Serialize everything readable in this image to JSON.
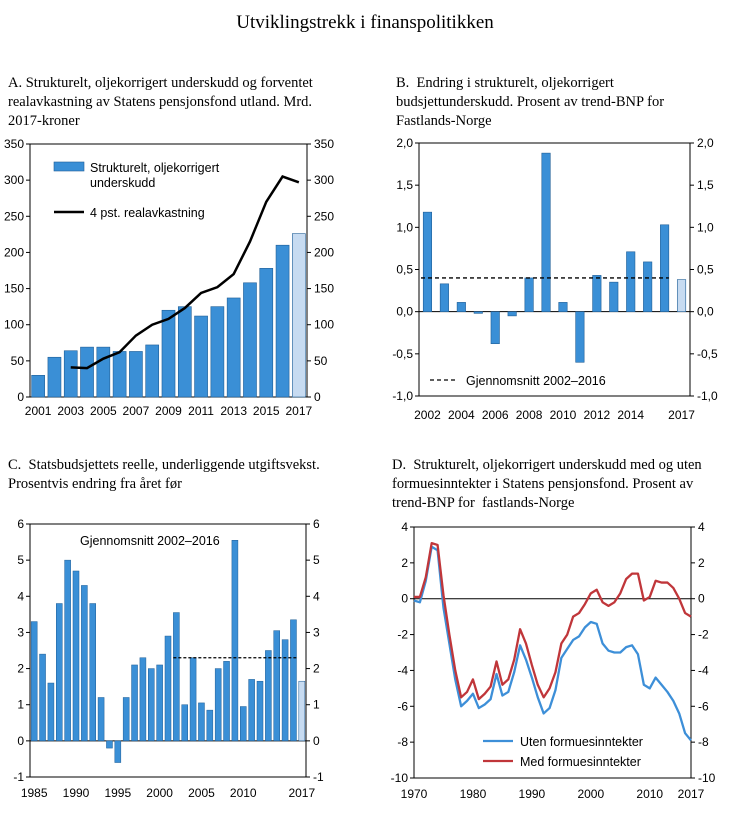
{
  "page_title": "Utviklingstrekk i finanspolitikken",
  "colors": {
    "bar": "#3a8fd6",
    "bar_light": "#c7dbf1",
    "line": "#000000",
    "blue_line": "#3d8fd8",
    "red_line": "#c0363a"
  },
  "chart_data": [
    {
      "panel": "A",
      "type": "bar",
      "title": "A. Strukturelt, oljekorrigert underskudd og forventet realavkastning av Statens pensjonsfond utland. Mrd. 2017-kroner",
      "x": [
        2001,
        2002,
        2003,
        2004,
        2005,
        2006,
        2007,
        2008,
        2009,
        2010,
        2011,
        2012,
        2013,
        2014,
        2015,
        2016,
        2017
      ],
      "ylim": [
        0,
        350
      ],
      "yticks": [
        "0",
        "50",
        "100",
        "150",
        "200",
        "250",
        "300",
        "350"
      ],
      "xticks": [
        "2001",
        "2003",
        "2005",
        "2007",
        "2009",
        "2011",
        "2013",
        "2015",
        "2017"
      ],
      "series": [
        {
          "name": "Strukturelt, oljekorrigert underskudd",
          "type": "bar",
          "values": [
            30,
            55,
            64,
            69,
            69,
            63,
            63,
            72,
            120,
            125,
            112,
            125,
            137,
            158,
            178,
            210,
            226
          ],
          "highlight_last": true
        },
        {
          "name": "4 pst. realavkastning",
          "type": "line",
          "x": [
            2003,
            2004,
            2005,
            2006,
            2007,
            2008,
            2009,
            2010,
            2011,
            2012,
            2013,
            2014,
            2015,
            2016,
            2017
          ],
          "values": [
            41,
            40,
            53,
            62,
            85,
            100,
            108,
            123,
            144,
            152,
            170,
            215,
            270,
            305,
            297
          ]
        }
      ],
      "legend": [
        "Strukturelt, oljekorrigert",
        "underskudd",
        "4 pst. realavkastning"
      ]
    },
    {
      "panel": "B",
      "type": "bar",
      "title": "B.  Endring i strukturelt, oljekorrigert budsjettunderskudd. Prosent av trend-BNP for Fastlands-Norge",
      "x": [
        2002,
        2003,
        2004,
        2005,
        2006,
        2007,
        2008,
        2009,
        2010,
        2011,
        2012,
        2013,
        2014,
        2015,
        2016,
        2017
      ],
      "values": [
        1.18,
        0.33,
        0.11,
        -0.02,
        -0.38,
        -0.05,
        0.4,
        1.88,
        0.11,
        -0.6,
        0.43,
        0.35,
        0.71,
        0.59,
        1.03,
        0.38
      ],
      "highlight_last": true,
      "average": {
        "label": "Gjennomsnitt 2002–2016",
        "value": 0.4
      },
      "ylim": [
        -1.0,
        2.0
      ],
      "yticks": [
        "-1,0",
        "-0,5",
        "0,0",
        "0,5",
        "1,0",
        "1,5",
        "2,0"
      ],
      "xticks": [
        "2002",
        "2004",
        "2006",
        "2008",
        "2010",
        "2012",
        "2014",
        "2017"
      ]
    },
    {
      "panel": "C",
      "type": "bar",
      "title": "C.  Statsbudsjettets reelle, underliggende utgiftsvekst. Prosentvis endring fra året før",
      "x": [
        1985,
        1986,
        1987,
        1988,
        1989,
        1990,
        1991,
        1992,
        1993,
        1994,
        1995,
        1996,
        1997,
        1998,
        1999,
        2000,
        2001,
        2002,
        2003,
        2004,
        2005,
        2006,
        2007,
        2008,
        2009,
        2010,
        2011,
        2012,
        2013,
        2014,
        2015,
        2016,
        2017
      ],
      "values": [
        3.3,
        2.4,
        1.6,
        3.8,
        5.0,
        4.7,
        4.3,
        3.8,
        1.2,
        -0.2,
        -0.6,
        1.2,
        2.1,
        2.3,
        2.0,
        2.1,
        2.9,
        3.55,
        1.0,
        2.3,
        1.05,
        0.85,
        2.0,
        2.2,
        5.55,
        0.95,
        1.7,
        1.65,
        2.5,
        3.05,
        2.8,
        3.35,
        1.65
      ],
      "highlight_last": true,
      "average": {
        "label": "Gjennomsnitt 2002–2016",
        "value": 2.3
      },
      "ylim": [
        -1,
        6
      ],
      "yticks": [
        "-1",
        "0",
        "1",
        "2",
        "3",
        "4",
        "5",
        "6"
      ],
      "xticks": [
        "1985",
        "1990",
        "1995",
        "2000",
        "2005",
        "2010",
        "2017"
      ]
    },
    {
      "panel": "D",
      "type": "line",
      "title": "D.  Strukturelt, oljekorrigert underskudd med og uten formuesinntekter i Statens pensjonsfond. Prosent av trend-BNP for  fastlands-Norge",
      "ylim": [
        -10,
        4
      ],
      "yticks": [
        "-10",
        "-8",
        "-6",
        "-4",
        "-2",
        "0",
        "2",
        "4"
      ],
      "xlim": [
        1970,
        2017
      ],
      "xticks": [
        "1970",
        "1980",
        "1990",
        "2000",
        "2010",
        "2017"
      ],
      "series": [
        {
          "name": "Uten formuesinntekter",
          "x": [
            1970,
            1971,
            1972,
            1973,
            1974,
            1975,
            1976,
            1977,
            1978,
            1979,
            1980,
            1981,
            1982,
            1983,
            1984,
            1985,
            1986,
            1987,
            1988,
            1989,
            1990,
            1991,
            1992,
            1993,
            1994,
            1995,
            1996,
            1997,
            1998,
            1999,
            2000,
            2001,
            2002,
            2003,
            2004,
            2005,
            2006,
            2007,
            2008,
            2009,
            2010,
            2011,
            2012,
            2013,
            2014,
            2015,
            2016,
            2017
          ],
          "values": [
            -0.1,
            -0.2,
            1.0,
            2.9,
            2.7,
            -0.5,
            -2.5,
            -4.5,
            -6.0,
            -5.7,
            -5.3,
            -6.1,
            -5.9,
            -5.6,
            -4.2,
            -5.4,
            -5.2,
            -4.1,
            -2.6,
            -3.4,
            -4.4,
            -5.5,
            -6.4,
            -6.1,
            -5.1,
            -3.3,
            -2.8,
            -2.3,
            -2.1,
            -1.6,
            -1.3,
            -1.4,
            -2.5,
            -2.9,
            -3.0,
            -3.0,
            -2.7,
            -2.6,
            -3.1,
            -4.8,
            -5.0,
            -4.4,
            -4.8,
            -5.2,
            -5.7,
            -6.4,
            -7.5,
            -7.9
          ]
        },
        {
          "name": "Med formuesinntekter",
          "x": [
            1970,
            1971,
            1972,
            1973,
            1974,
            1975,
            1976,
            1977,
            1978,
            1979,
            1980,
            1981,
            1982,
            1983,
            1984,
            1985,
            1986,
            1987,
            1988,
            1989,
            1990,
            1991,
            1992,
            1993,
            1994,
            1995,
            1996,
            1997,
            1998,
            1999,
            2000,
            2001,
            2002,
            2003,
            2004,
            2005,
            2006,
            2007,
            2008,
            2009,
            2010,
            2011,
            2012,
            2013,
            2014,
            2015,
            2016,
            2017
          ],
          "values": [
            0.1,
            0.1,
            1.2,
            3.1,
            3.0,
            0.2,
            -2.0,
            -4.0,
            -5.5,
            -5.2,
            -4.5,
            -5.6,
            -5.3,
            -4.9,
            -3.5,
            -4.8,
            -4.5,
            -3.4,
            -1.7,
            -2.5,
            -3.7,
            -4.8,
            -5.5,
            -5.0,
            -4.1,
            -2.5,
            -2.0,
            -1.0,
            -0.8,
            -0.3,
            0.3,
            0.5,
            -0.2,
            -0.4,
            -0.2,
            0.3,
            1.1,
            1.4,
            1.4,
            -0.1,
            0.1,
            1.0,
            0.9,
            0.9,
            0.6,
            0.0,
            -0.8,
            -1.0
          ]
        }
      ],
      "zero_line": true
    }
  ]
}
